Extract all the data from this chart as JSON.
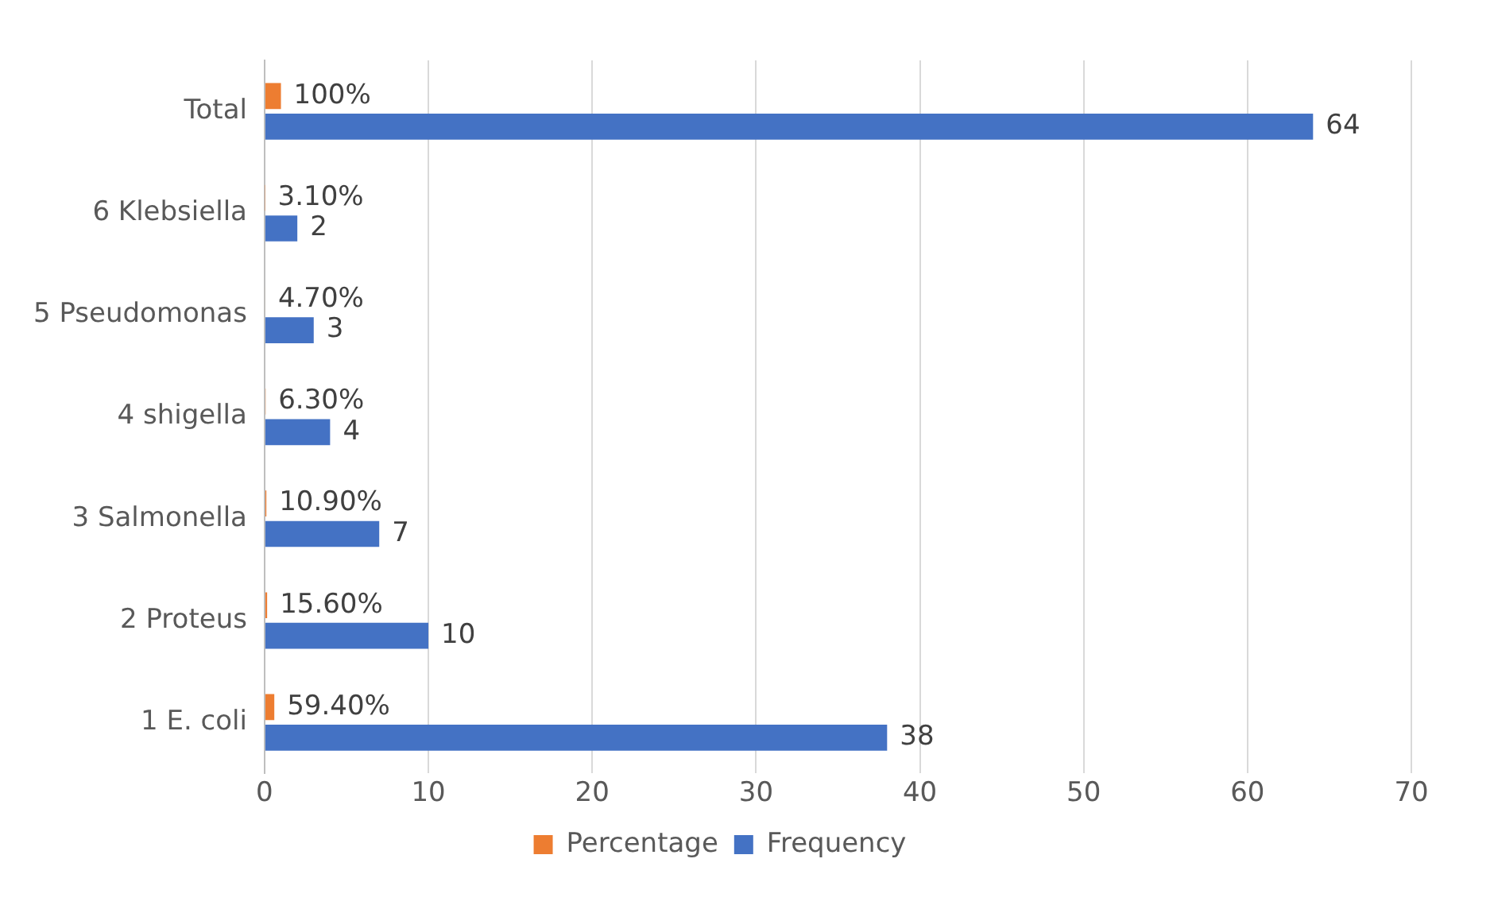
{
  "chart_data": {
    "type": "bar",
    "orientation": "horizontal",
    "categories": [
      "Total",
      "6 Klebsiella",
      "5 Pseudomonas",
      "4 shigella",
      "3 Salmonella",
      "2 Proteus",
      "1 E. coli"
    ],
    "series": [
      {
        "name": "Percentage",
        "color": "#ed7d31",
        "values": [
          1,
          0.031,
          0.047,
          0.063,
          0.109,
          0.156,
          0.594
        ],
        "value_labels": [
          "100%",
          "3.10%",
          "4.70%",
          "6.30%",
          "10.90%",
          "15.60%",
          "59.40%"
        ]
      },
      {
        "name": "Frequency",
        "color": "#4472c4",
        "values": [
          64,
          2,
          3,
          4,
          7,
          10,
          38
        ],
        "value_labels": [
          "64",
          "2",
          "3",
          "4",
          "7",
          "10",
          "38"
        ]
      }
    ],
    "xlim": [
      0,
      70
    ],
    "xticks": [
      0,
      10,
      20,
      30,
      40,
      50,
      60,
      70
    ],
    "grid": "x",
    "legend": "bottom"
  }
}
